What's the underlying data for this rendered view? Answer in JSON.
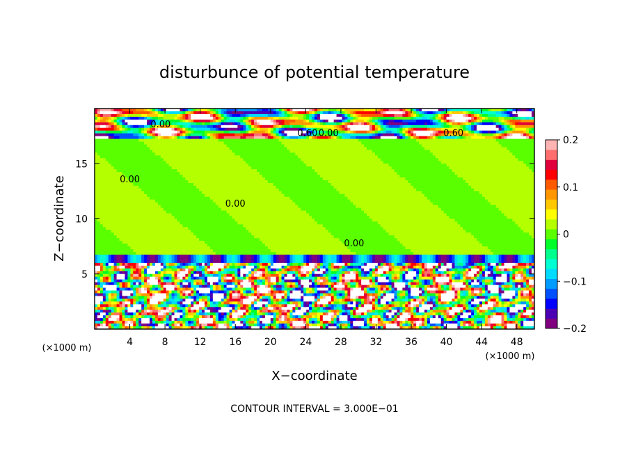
{
  "chart_data": {
    "type": "heatmap",
    "title": "disturbunce of potential temperature",
    "xlabel": "X−coordinate",
    "ylabel": "Z−coordinate",
    "x_unit_label_left": "(×1000 m)",
    "x_unit_label_right": "(×1000 m)",
    "xlim": [
      0,
      50
    ],
    "ylim": [
      0,
      20
    ],
    "xticks": [
      4,
      8,
      12,
      16,
      20,
      24,
      28,
      32,
      36,
      40,
      44,
      48
    ],
    "xtick_labels": [
      "4",
      "8",
      "12",
      "16",
      "20",
      "24",
      "28",
      "32",
      "36",
      "40",
      "44",
      "48"
    ],
    "yticks": [
      5,
      10,
      15
    ],
    "ytick_labels": [
      "5",
      "10",
      "15"
    ],
    "colorbar": {
      "min": -0.2,
      "max": 0.2,
      "ticks": [
        0.2,
        0.1,
        0,
        -0.1,
        -0.2
      ],
      "tick_labels": [
        "0.2",
        "0.1",
        "0",
        "−0.1",
        "−0.2"
      ],
      "colors": [
        "#800080",
        "#4b00b4",
        "#0000ff",
        "#0050ff",
        "#009bff",
        "#00dcff",
        "#00ffd2",
        "#00ff8c",
        "#00ff28",
        "#5aff00",
        "#b4ff00",
        "#ffff00",
        "#ffc800",
        "#ff9600",
        "#ff5a00",
        "#ff0000",
        "#e1003c",
        "#ff6e6e",
        "#ffb4b4"
      ]
    },
    "contour_labels": [
      {
        "text": "0.00",
        "x": 7.5,
        "z": 18.3
      },
      {
        "text": "0.60",
        "x": 24.2,
        "z": 17.5
      },
      {
        "text": "0.00",
        "x": 26.6,
        "z": 17.5
      },
      {
        "text": "0.60",
        "x": 40.8,
        "z": 17.5
      },
      {
        "text": "0.00",
        "x": 4.0,
        "z": 13.3
      },
      {
        "text": "0.00",
        "x": 16.0,
        "z": 11.1
      },
      {
        "text": "0.00",
        "x": 29.5,
        "z": 7.5
      }
    ],
    "annotation": "CONTOUR INTERVAL = 3.000E−01"
  }
}
